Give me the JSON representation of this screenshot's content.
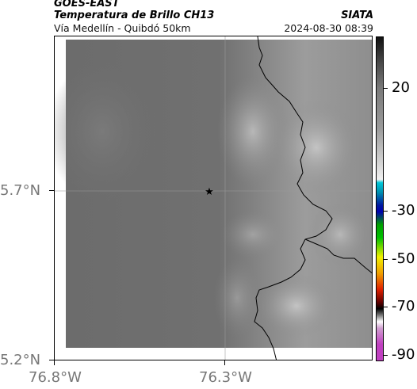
{
  "header": {
    "product": "GOES-EAST",
    "channel": "Temperatura de Brillo CH13",
    "location": "Vía Medellín - Quibdó 50km",
    "brand": "SIATA",
    "datetime": "2024-08-30 08:39"
  },
  "axes": {
    "lat_ticks": [
      "5.7°N",
      "5.2°N"
    ],
    "lon_ticks": [
      "76.8°W",
      "76.3°W"
    ]
  },
  "colorbar": {
    "ticks": [
      "20",
      "-30",
      "-50",
      "-70",
      "-90"
    ],
    "colors": {
      "top": "#111111",
      "mid_gray": "#9a9a9a",
      "light": "#f0f0f0",
      "cyan": "#00c8d8",
      "blue": "#0018a0",
      "green": "#00c000",
      "yellow": "#f0f000",
      "red": "#e02000",
      "black": "#000000",
      "white": "#ffffff",
      "magenta": "#c040c0"
    }
  },
  "map": {
    "marker_icon": "star-icon",
    "background_gray": "#6f6f6f",
    "boundary_color": "#000000"
  }
}
